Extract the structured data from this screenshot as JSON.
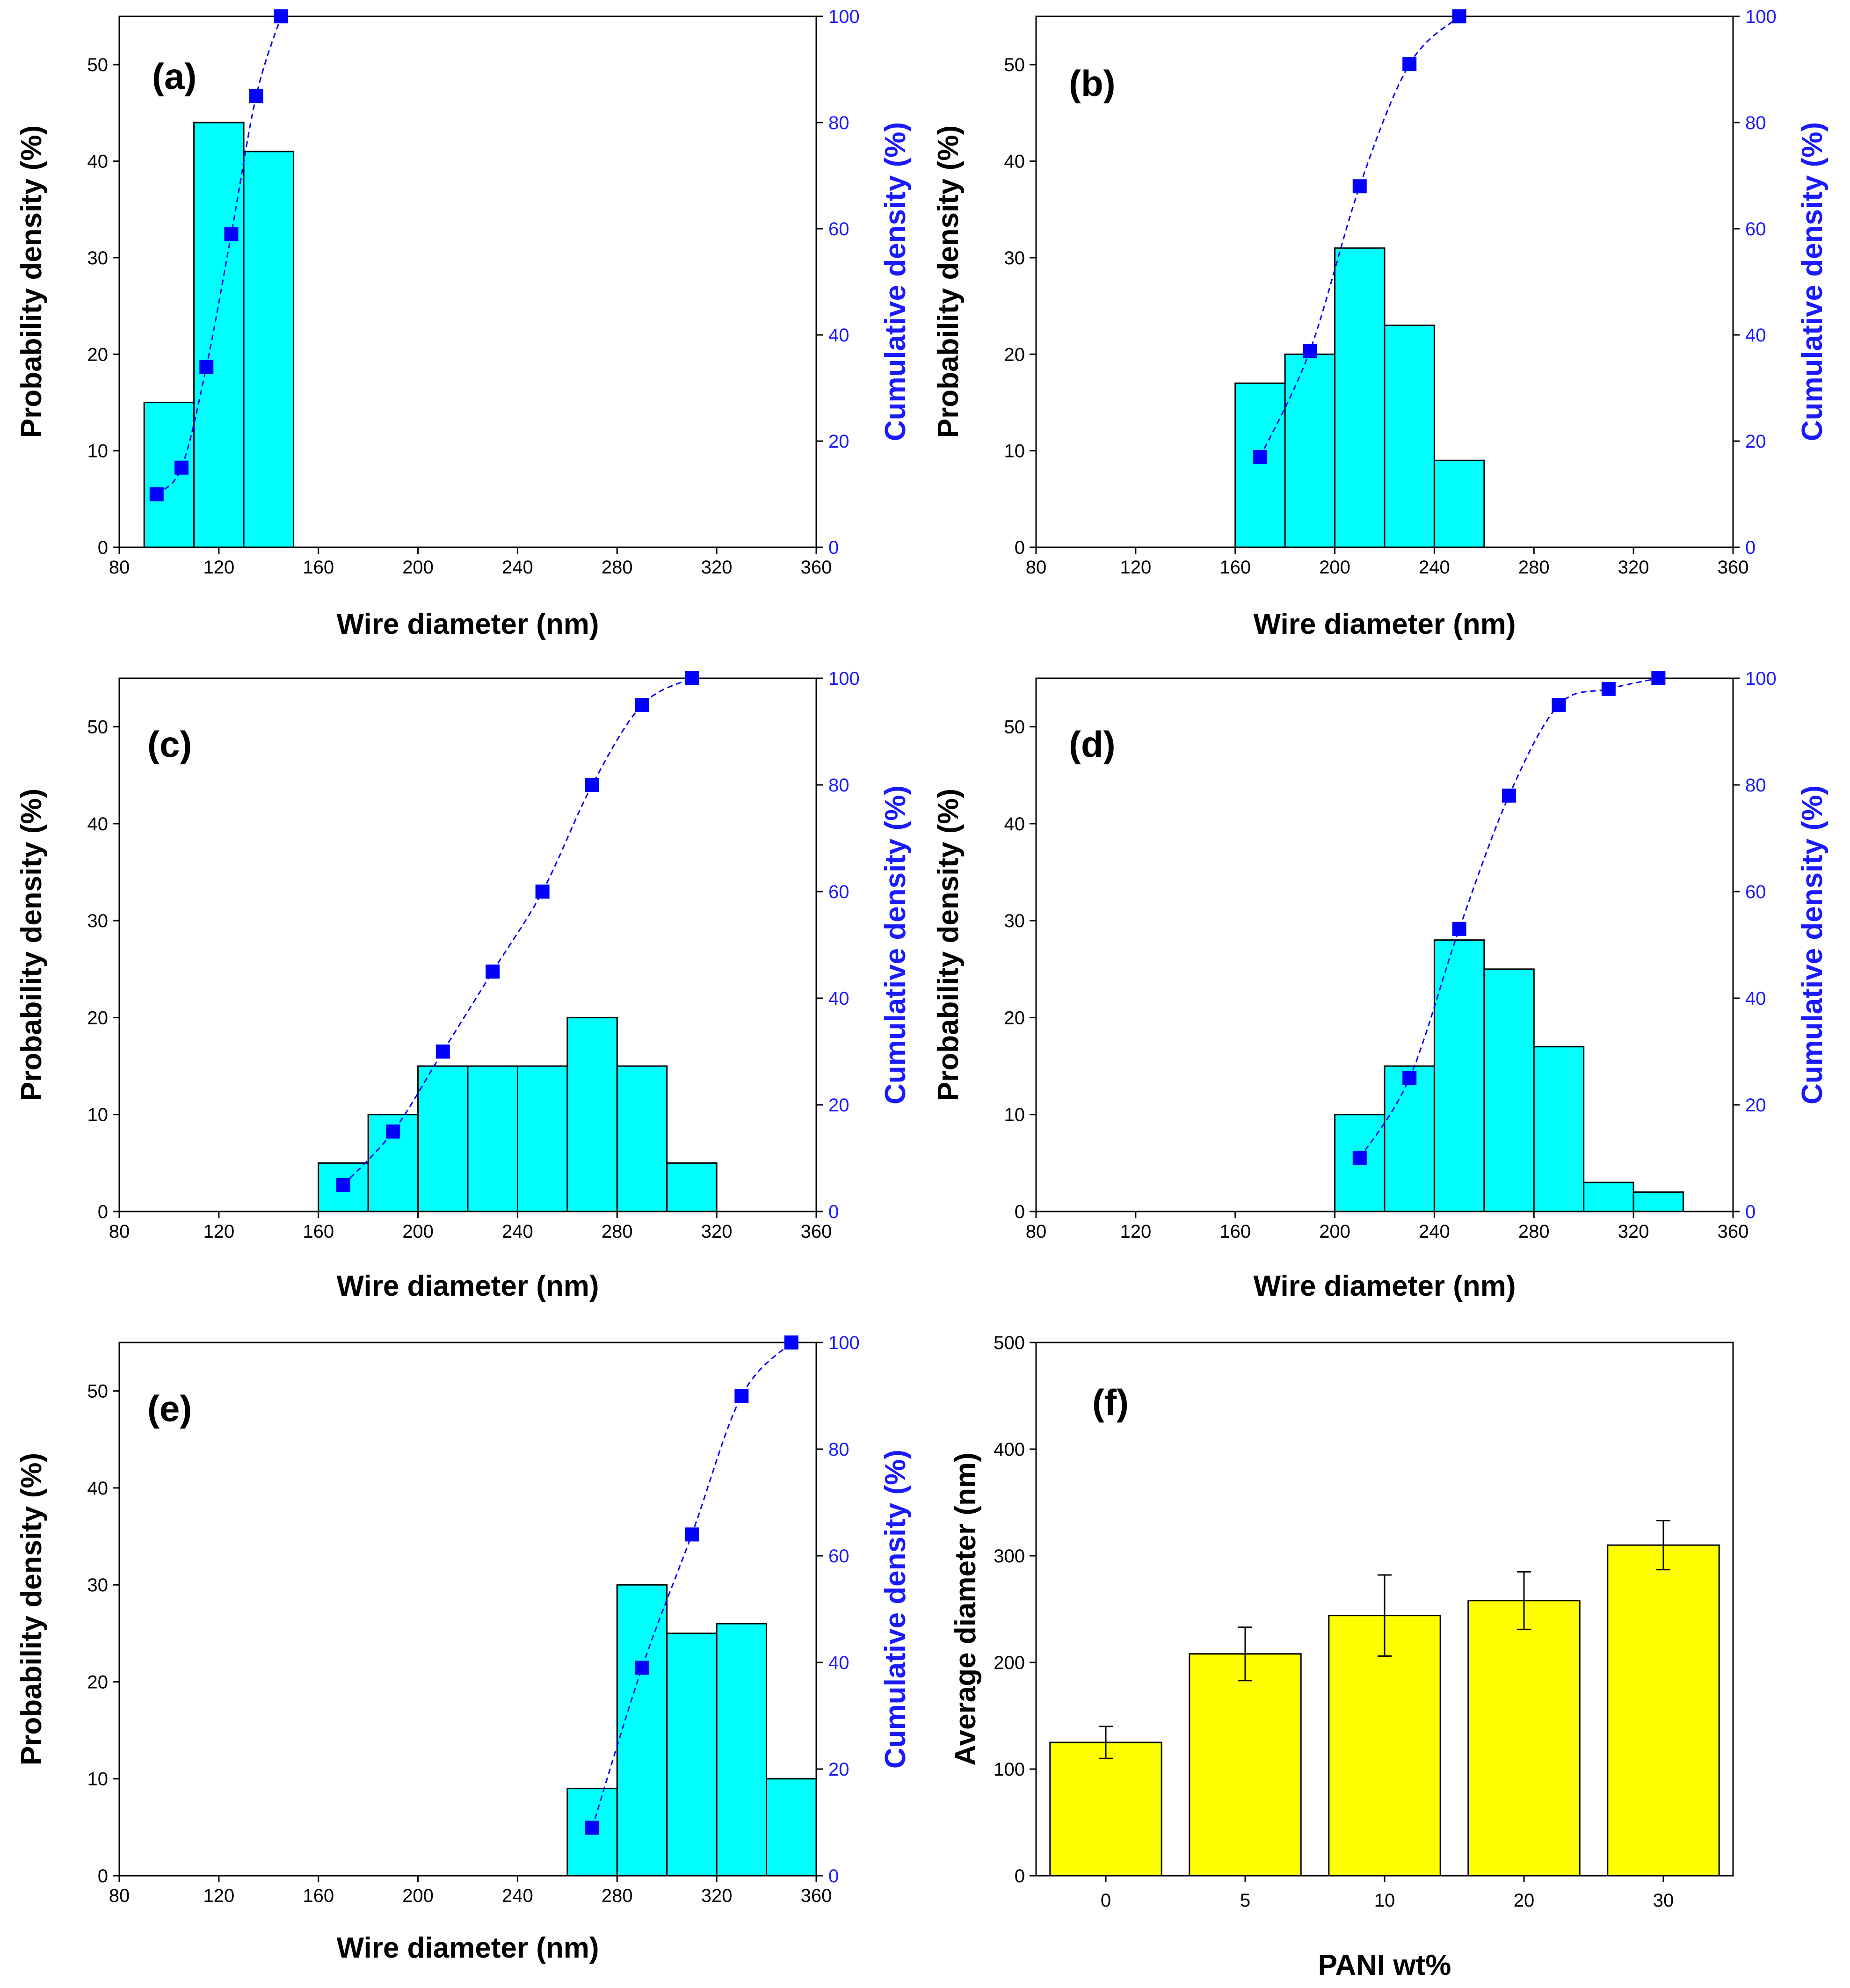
{
  "chart_data": [
    {
      "type": "bar",
      "panel_label": "(a)",
      "title": "",
      "xlabel": "Wire diameter (nm)",
      "ylabel": "Probability density (%)",
      "y2label": "Cumulative density (%)",
      "xlim": [
        80,
        360
      ],
      "ylim": [
        0,
        55
      ],
      "y2lim": [
        0,
        100
      ],
      "xticks": [
        80,
        120,
        160,
        200,
        240,
        280,
        320,
        360
      ],
      "yticks": [
        0,
        10,
        20,
        30,
        40,
        50
      ],
      "y2ticks": [
        0,
        20,
        40,
        60,
        80,
        100
      ],
      "bin_width": 20,
      "bins": [
        {
          "start": 90,
          "value": 15
        },
        {
          "start": 110,
          "value": 44
        },
        {
          "start": 130,
          "value": 41
        }
      ],
      "cumulative": {
        "x": [
          95,
          105,
          115,
          125,
          135,
          145
        ],
        "y": [
          10,
          15,
          34,
          59,
          85,
          100
        ]
      },
      "bar_color": "#00ffff",
      "cumulative_color": "#0000ff"
    },
    {
      "type": "bar",
      "panel_label": "(b)",
      "title": "",
      "xlabel": "Wire diameter (nm)",
      "ylabel": "Probability density (%)",
      "y2label": "Cumulative density (%)",
      "xlim": [
        80,
        360
      ],
      "ylim": [
        0,
        55
      ],
      "y2lim": [
        0,
        100
      ],
      "xticks": [
        80,
        120,
        160,
        200,
        240,
        280,
        320,
        360
      ],
      "yticks": [
        0,
        10,
        20,
        30,
        40,
        50
      ],
      "y2ticks": [
        0,
        20,
        40,
        60,
        80,
        100
      ],
      "bin_width": 20,
      "bins": [
        {
          "start": 160,
          "value": 17
        },
        {
          "start": 180,
          "value": 20
        },
        {
          "start": 200,
          "value": 31
        },
        {
          "start": 220,
          "value": 23
        },
        {
          "start": 240,
          "value": 9
        }
      ],
      "cumulative": {
        "x": [
          170,
          190,
          210,
          230,
          250
        ],
        "y": [
          17,
          37,
          68,
          91,
          100
        ]
      },
      "bar_color": "#00ffff",
      "cumulative_color": "#0000ff"
    },
    {
      "type": "bar",
      "panel_label": "(c)",
      "title": "",
      "xlabel": "Wire diameter (nm)",
      "ylabel": "Probability density (%)",
      "y2label": "Cumulative density (%)",
      "xlim": [
        80,
        360
      ],
      "ylim": [
        0,
        55
      ],
      "y2lim": [
        0,
        100
      ],
      "xticks": [
        80,
        120,
        160,
        200,
        240,
        280,
        320,
        360
      ],
      "yticks": [
        0,
        10,
        20,
        30,
        40,
        50
      ],
      "y2ticks": [
        0,
        20,
        40,
        60,
        80,
        100
      ],
      "bin_width": 20,
      "bins": [
        {
          "start": 160,
          "value": 5
        },
        {
          "start": 180,
          "value": 10
        },
        {
          "start": 200,
          "value": 15
        },
        {
          "start": 220,
          "value": 15
        },
        {
          "start": 240,
          "value": 15
        },
        {
          "start": 260,
          "value": 20
        },
        {
          "start": 280,
          "value": 15
        },
        {
          "start": 300,
          "value": 5
        }
      ],
      "cumulative": {
        "x": [
          170,
          190,
          210,
          230,
          250,
          270,
          290,
          310
        ],
        "y": [
          5,
          15,
          30,
          45,
          60,
          80,
          95,
          100
        ]
      },
      "bar_color": "#00ffff",
      "cumulative_color": "#0000ff"
    },
    {
      "type": "bar",
      "panel_label": "(d)",
      "title": "",
      "xlabel": "Wire diameter (nm)",
      "ylabel": "Probability density (%)",
      "y2label": "Cumulative density (%)",
      "xlim": [
        80,
        360
      ],
      "ylim": [
        0,
        55
      ],
      "y2lim": [
        0,
        100
      ],
      "xticks": [
        80,
        120,
        160,
        200,
        240,
        280,
        320,
        360
      ],
      "yticks": [
        0,
        10,
        20,
        30,
        40,
        50
      ],
      "y2ticks": [
        0,
        20,
        40,
        60,
        80,
        100
      ],
      "bin_width": 20,
      "bins": [
        {
          "start": 200,
          "value": 10
        },
        {
          "start": 220,
          "value": 15
        },
        {
          "start": 240,
          "value": 28
        },
        {
          "start": 260,
          "value": 25
        },
        {
          "start": 280,
          "value": 17
        },
        {
          "start": 300,
          "value": 3
        },
        {
          "start": 320,
          "value": 2
        }
      ],
      "cumulative": {
        "x": [
          210,
          230,
          250,
          270,
          290,
          310,
          330
        ],
        "y": [
          10,
          25,
          53,
          78,
          95,
          98,
          100
        ]
      },
      "bar_color": "#00ffff",
      "cumulative_color": "#0000ff"
    },
    {
      "type": "bar",
      "panel_label": "(e)",
      "title": "",
      "xlabel": "Wire diameter (nm)",
      "ylabel": "Probability density (%)",
      "y2label": "Cumulative density (%)",
      "xlim": [
        80,
        360
      ],
      "ylim": [
        0,
        55
      ],
      "y2lim": [
        0,
        100
      ],
      "xticks": [
        80,
        120,
        160,
        200,
        240,
        280,
        320,
        360
      ],
      "yticks": [
        0,
        10,
        20,
        30,
        40,
        50
      ],
      "y2ticks": [
        0,
        20,
        40,
        60,
        80,
        100
      ],
      "bin_width": 20,
      "bins": [
        {
          "start": 260,
          "value": 9
        },
        {
          "start": 280,
          "value": 30
        },
        {
          "start": 300,
          "value": 25
        },
        {
          "start": 320,
          "value": 26
        },
        {
          "start": 340,
          "value": 10
        }
      ],
      "cumulative": {
        "x": [
          270,
          290,
          310,
          330,
          350
        ],
        "y": [
          9,
          39,
          64,
          90,
          100
        ]
      },
      "bar_color": "#00ffff",
      "cumulative_color": "#0000ff"
    },
    {
      "type": "bar",
      "panel_label": "(f)",
      "title": "",
      "xlabel": "PANI wt%",
      "ylabel": "Average diameter (nm)",
      "ylim": [
        0,
        500
      ],
      "yticks": [
        0,
        100,
        200,
        300,
        400,
        500
      ],
      "categories": [
        "0",
        "5",
        "10",
        "20",
        "30"
      ],
      "values": [
        125,
        208,
        244,
        258,
        310
      ],
      "errors": [
        15,
        25,
        38,
        27,
        23
      ],
      "bar_color": "#ffff00"
    }
  ]
}
